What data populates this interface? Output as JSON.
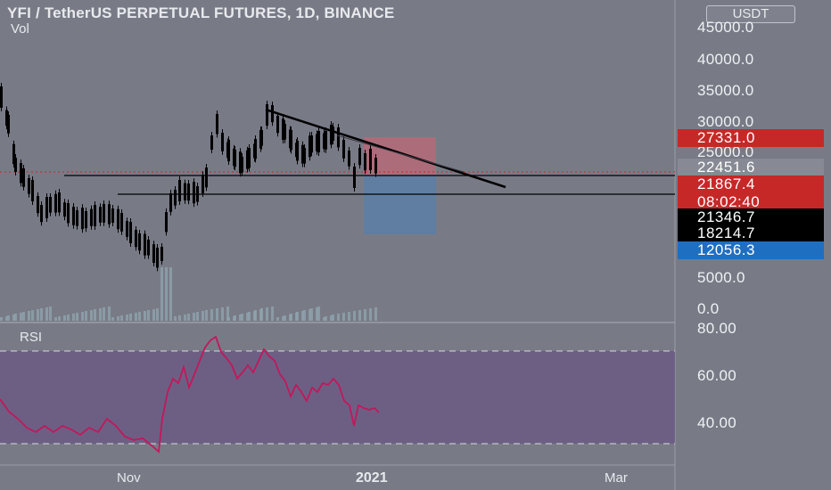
{
  "header": {
    "title": "YFI / TetherUS PERPETUAL FUTURES, 1D, BINANCE",
    "volume_label": "Vol",
    "currency_button": "USDT"
  },
  "price_axis": {
    "ticks": [
      "45000.0",
      "40000.0",
      "35000.0",
      "30000.0",
      "25000.0",
      "5000.0",
      "0.0"
    ]
  },
  "badges": [
    {
      "label": "27331.0",
      "color": "#c62828",
      "text_color": "#ffffff"
    },
    {
      "label": "22451.6",
      "color": "#878a94",
      "text_color": "#ffffff"
    },
    {
      "label": "21867.4",
      "color": "#c62828",
      "text_color": "#ffffff"
    },
    {
      "label": "08:02:40",
      "color": "#c62828",
      "text_color": "#ffffff"
    },
    {
      "label": "21346.7",
      "color": "#000000",
      "text_color": "#ffffff"
    },
    {
      "label": "18214.7",
      "color": "#000000",
      "text_color": "#ffffff"
    },
    {
      "label": "12056.3",
      "color": "#1e6fc2",
      "text_color": "#ffffff"
    }
  ],
  "rsi": {
    "label": "RSI",
    "ticks": [
      "80.00",
      "60.00",
      "40.00"
    ],
    "band_color": "#6b5a84",
    "line_color": "#c2185b"
  },
  "time_axis": {
    "labels": [
      "Nov",
      "2021",
      "Mar"
    ]
  },
  "colors": {
    "background": "#787b86",
    "candles": "#000000",
    "trendline": "#000000",
    "stop_zone": "#b66a78",
    "target_zone": "#5b7fa6",
    "axis_divider": "#9a9ca6"
  }
}
